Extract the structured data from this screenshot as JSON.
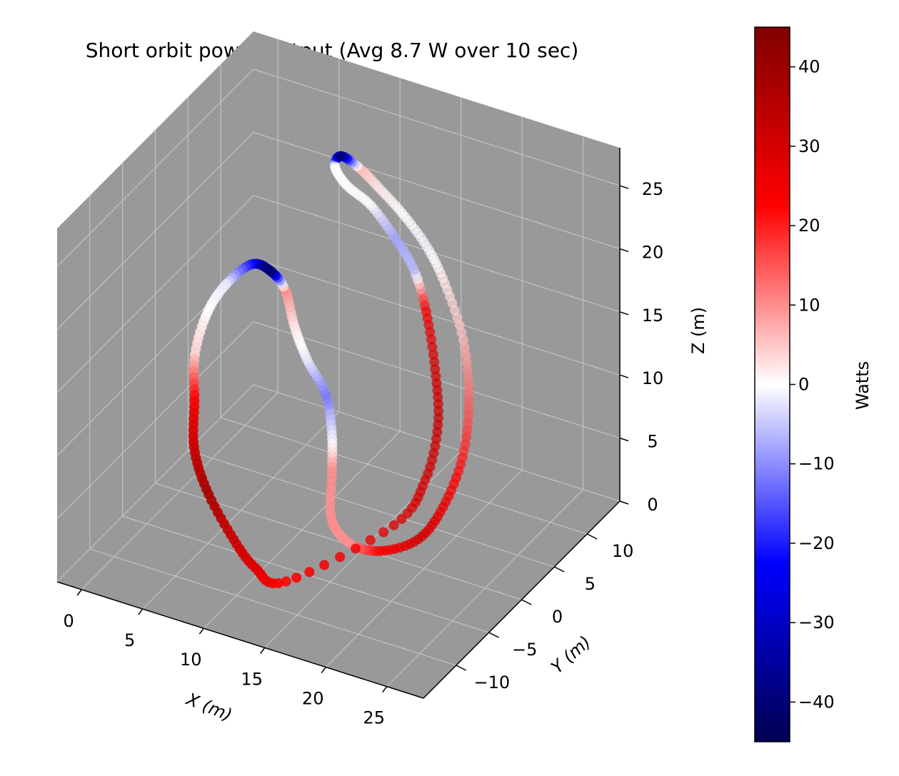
{
  "chart_data": {
    "type": "scatter",
    "title": "Short orbit power output (Avg 8.7 W over 10 sec)",
    "xlabel": "X (m)",
    "ylabel": "Y (m)",
    "zlabel": "Z (m)",
    "xlim": [
      -2,
      28
    ],
    "ylim": [
      -15,
      15
    ],
    "zlim": [
      0,
      28
    ],
    "x_ticks": [
      0,
      5,
      10,
      15,
      20,
      25
    ],
    "y_ticks": [
      -10,
      -5,
      0,
      5,
      10
    ],
    "z_ticks": [
      0,
      5,
      10,
      15,
      20,
      25
    ],
    "x_tick_labels": [
      "0",
      "5",
      "10",
      "15",
      "20",
      "25"
    ],
    "y_tick_labels": [
      "−10",
      "−5",
      "0",
      "5",
      "10"
    ],
    "z_tick_labels": [
      "0",
      "5",
      "10",
      "15",
      "20",
      "25"
    ],
    "grid": true,
    "pane_color": "#999999",
    "colorbar": {
      "label": "Watts",
      "colormap": "seismic",
      "range": [
        -45,
        45
      ],
      "ticks": [
        40,
        30,
        20,
        10,
        0,
        -10,
        -20,
        -30,
        -40
      ],
      "tick_labels": [
        "40",
        "30",
        "20",
        "10",
        "0",
        "−10",
        "−20",
        "−30",
        "−40"
      ]
    },
    "series": [
      {
        "points": [
          {
            "x": 13,
            "y": -8,
            "z": 1,
            "w": 22
          },
          {
            "x": 11,
            "y": -9,
            "z": 2,
            "w": 28
          },
          {
            "x": 9,
            "y": -9,
            "z": 4,
            "w": 32
          },
          {
            "x": 7,
            "y": -9,
            "z": 7,
            "w": 38
          },
          {
            "x": 6,
            "y": -9,
            "z": 10,
            "w": 32
          },
          {
            "x": 5.5,
            "y": -8,
            "z": 13,
            "w": 24
          },
          {
            "x": 5,
            "y": -7,
            "z": 16,
            "w": 4
          },
          {
            "x": 5.5,
            "y": -6,
            "z": 19,
            "w": 0
          },
          {
            "x": 6.5,
            "y": -5,
            "z": 21,
            "w": -2
          },
          {
            "x": 8,
            "y": -4,
            "z": 22.5,
            "w": -22
          },
          {
            "x": 9.5,
            "y": -4,
            "z": 22.5,
            "w": -42
          },
          {
            "x": 10.5,
            "y": -3.5,
            "z": 21,
            "w": 10
          },
          {
            "x": 11,
            "y": -3,
            "z": 18,
            "w": 2
          },
          {
            "x": 11.5,
            "y": -2,
            "z": 15,
            "w": -2
          },
          {
            "x": 12.5,
            "y": -1,
            "z": 12,
            "w": -12
          },
          {
            "x": 13,
            "y": -1,
            "z": 9,
            "w": -2
          },
          {
            "x": 13,
            "y": -1,
            "z": 6,
            "w": 10
          },
          {
            "x": 13.5,
            "y": -2,
            "z": 3,
            "w": 10
          },
          {
            "x": 15,
            "y": -2,
            "z": 1.5,
            "w": 10
          },
          {
            "x": 17,
            "y": -1,
            "z": 1,
            "w": 24
          },
          {
            "x": 19,
            "y": 1,
            "z": 1.5,
            "w": 30
          },
          {
            "x": 20.5,
            "y": 2,
            "z": 4,
            "w": 26
          },
          {
            "x": 21,
            "y": 4,
            "z": 7,
            "w": 20
          },
          {
            "x": 21,
            "y": 5,
            "z": 11,
            "w": 14
          },
          {
            "x": 20,
            "y": 6,
            "z": 15,
            "w": 6
          },
          {
            "x": 18.5,
            "y": 6,
            "z": 19,
            "w": 2
          },
          {
            "x": 17,
            "y": 6,
            "z": 21.5,
            "w": -1
          },
          {
            "x": 15,
            "y": 6,
            "z": 23.5,
            "w": 0
          },
          {
            "x": 13,
            "y": 6,
            "z": 25,
            "w": 2
          },
          {
            "x": 11.5,
            "y": 6,
            "z": 26,
            "w": 6
          },
          {
            "x": 10,
            "y": 6,
            "z": 26.5,
            "w": -40
          },
          {
            "x": 9.5,
            "y": 6,
            "z": 25.5,
            "w": 0
          },
          {
            "x": 11,
            "y": 5,
            "z": 25,
            "w": 0
          },
          {
            "x": 13,
            "y": 5,
            "z": 24,
            "w": 0
          },
          {
            "x": 15,
            "y": 5,
            "z": 22,
            "w": -8
          },
          {
            "x": 16.5,
            "y": 5,
            "z": 20,
            "w": -6
          },
          {
            "x": 17.5,
            "y": 5,
            "z": 17,
            "w": 24
          },
          {
            "x": 18.5,
            "y": 4.5,
            "z": 13,
            "w": 30
          },
          {
            "x": 19,
            "y": 4,
            "z": 9,
            "w": 32
          },
          {
            "x": 18.5,
            "y": 3,
            "z": 5,
            "w": 30
          },
          {
            "x": 17,
            "y": 1,
            "z": 2,
            "w": 28
          }
        ]
      }
    ]
  }
}
